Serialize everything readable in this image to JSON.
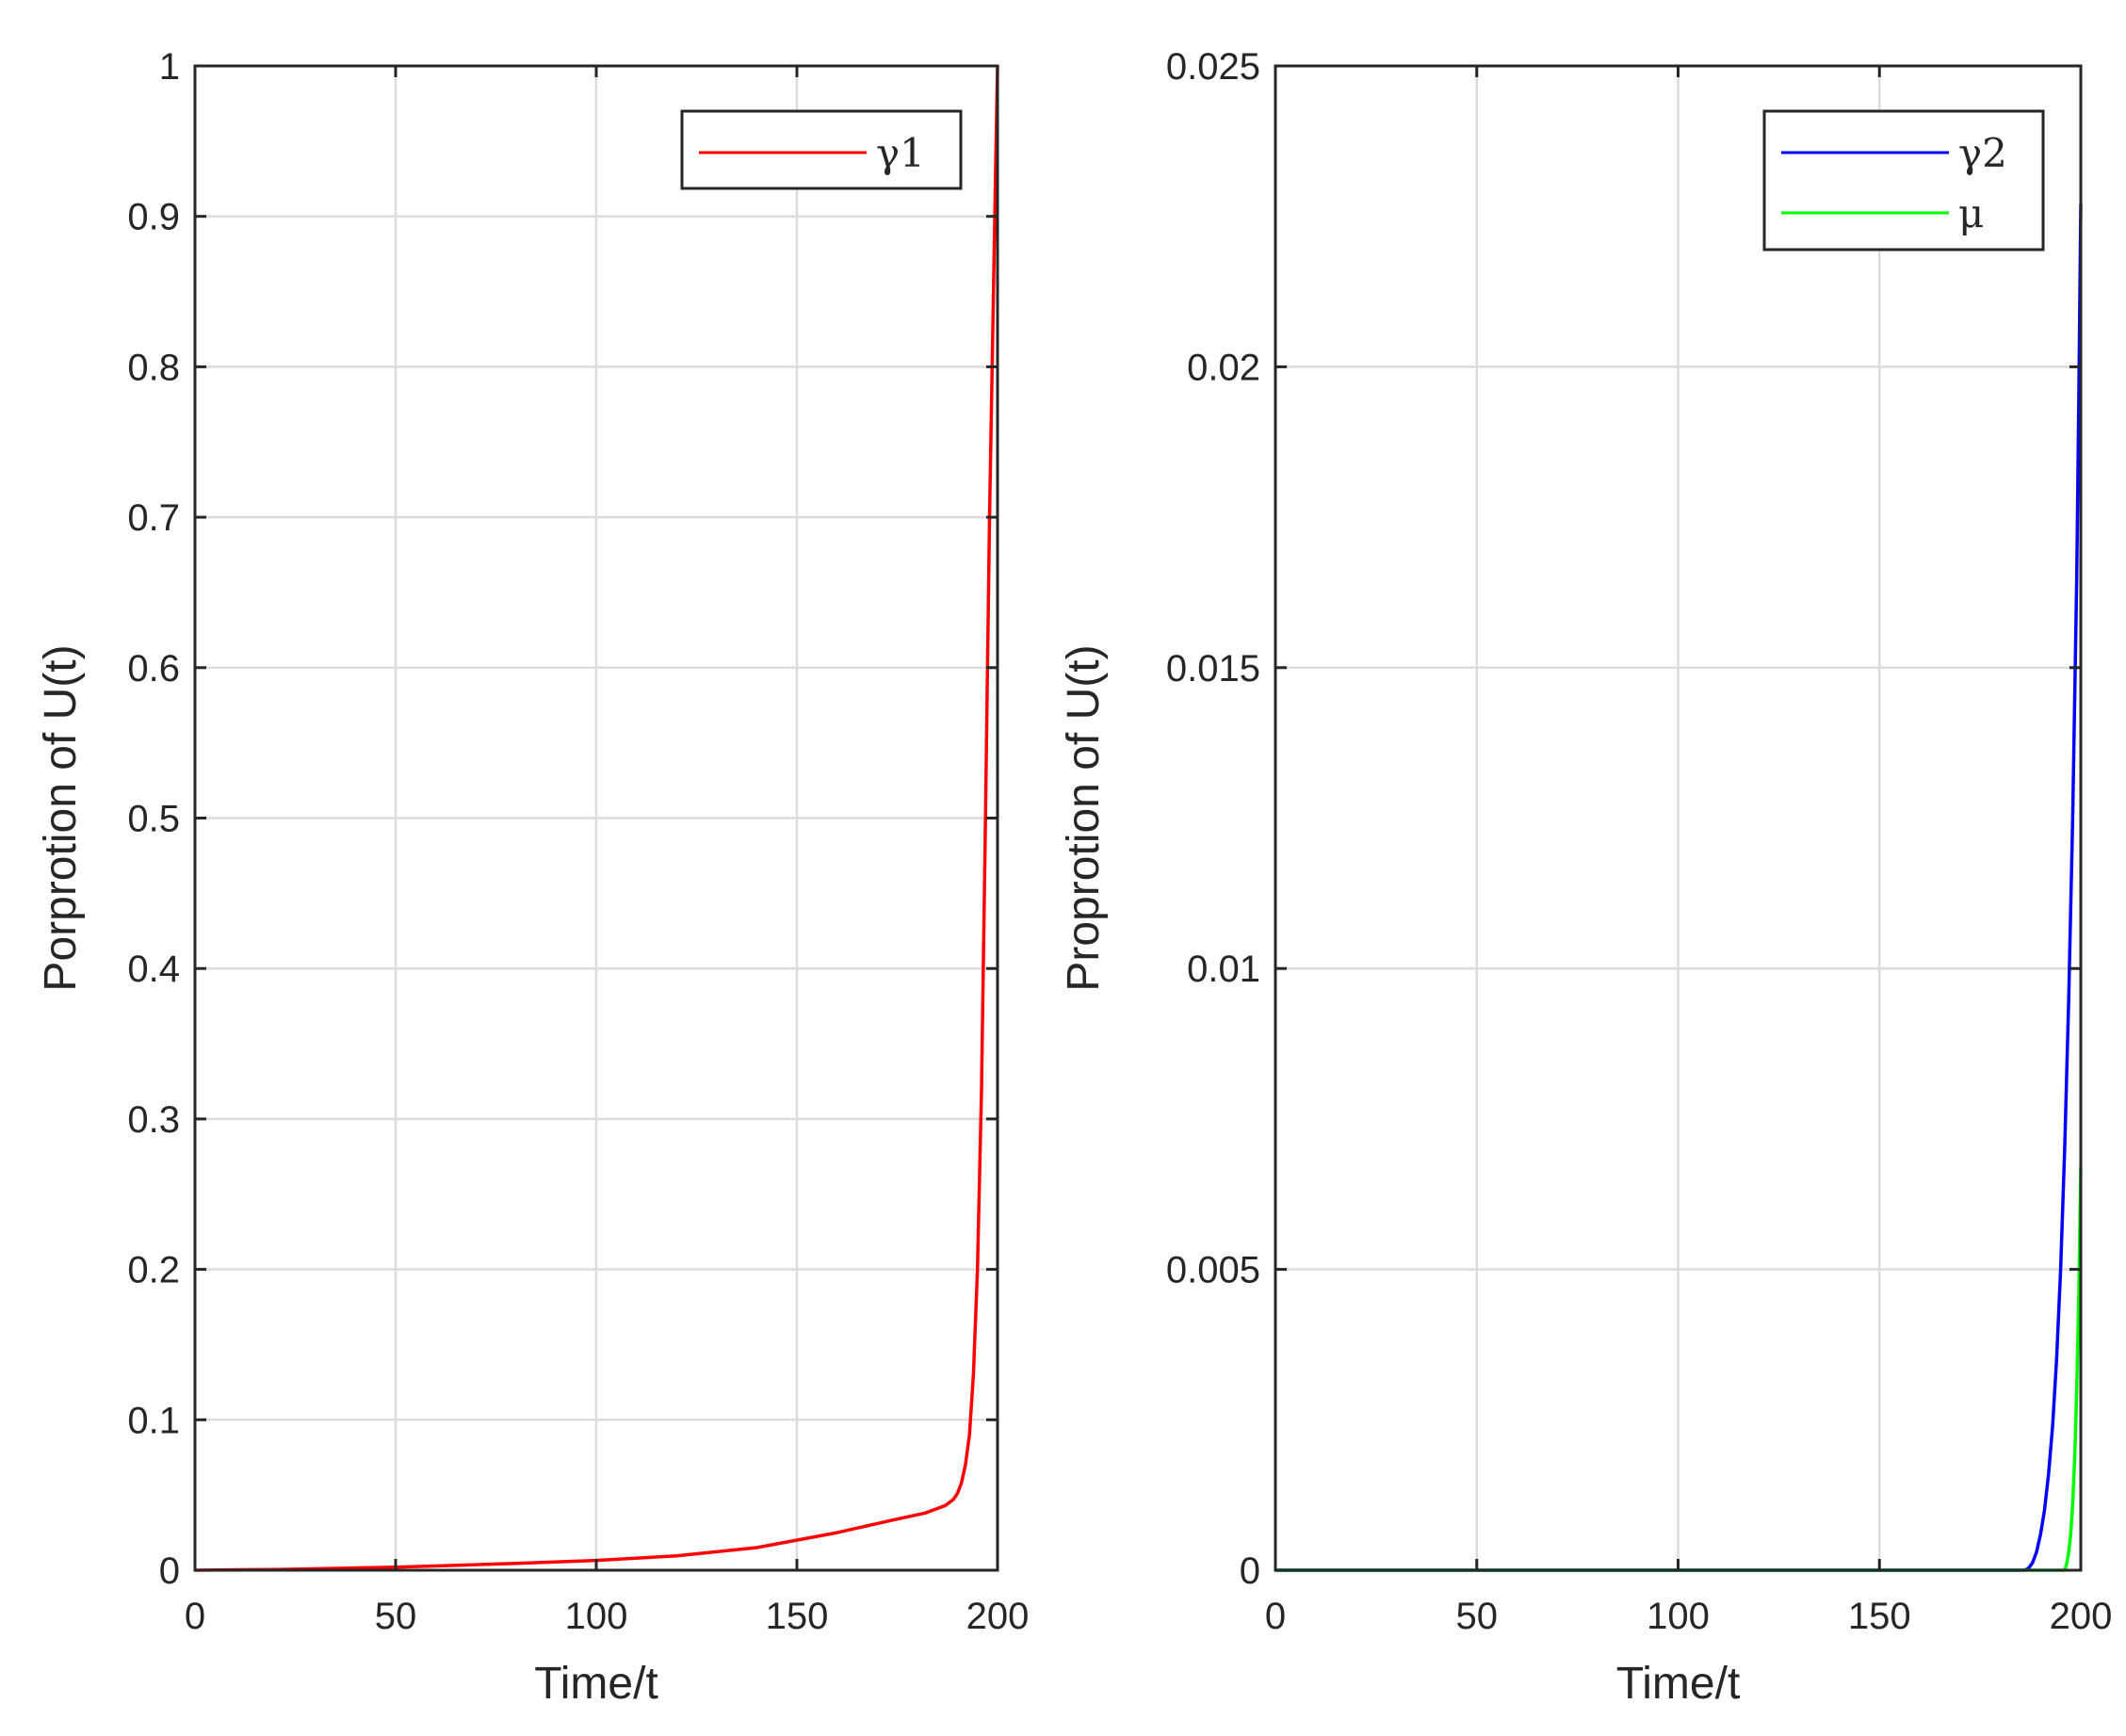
{
  "chart_data": [
    {
      "type": "line",
      "xlabel": "Time/t",
      "ylabel": "Porprotion of U(t)",
      "xlim": [
        0,
        200
      ],
      "ylim": [
        0,
        1
      ],
      "xticks": [
        0,
        50,
        100,
        150,
        200
      ],
      "xtick_labels": [
        "0",
        "50",
        "100",
        "150",
        "200"
      ],
      "yticks": [
        0,
        0.1,
        0.2,
        0.3,
        0.4,
        0.5,
        0.6,
        0.7,
        0.8,
        0.9,
        1
      ],
      "ytick_labels": [
        "0",
        "0.1",
        "0.2",
        "0.3",
        "0.4",
        "0.5",
        "0.6",
        "0.7",
        "0.8",
        "0.9",
        "1"
      ],
      "grid": true,
      "legend_position": "top-right",
      "series": [
        {
          "name": "γ1",
          "color": "#ff0000",
          "x": [
            0,
            20,
            40,
            50,
            60,
            80,
            100,
            120,
            140,
            160,
            175,
            182,
            185,
            187,
            189,
            190,
            191,
            192,
            193,
            194,
            195,
            196,
            197,
            198,
            199,
            199.5,
            200
          ],
          "y": [
            0,
            0.0005,
            0.0015,
            0.002,
            0.0028,
            0.0045,
            0.0065,
            0.0095,
            0.015,
            0.025,
            0.034,
            0.038,
            0.041,
            0.043,
            0.047,
            0.051,
            0.058,
            0.07,
            0.09,
            0.13,
            0.2,
            0.32,
            0.5,
            0.7,
            0.85,
            0.93,
            1.0
          ]
        }
      ]
    },
    {
      "type": "line",
      "xlabel": "Time/t",
      "ylabel": "Proprotion of U(t)",
      "xlim": [
        0,
        200
      ],
      "ylim": [
        0,
        0.025
      ],
      "xticks": [
        0,
        50,
        100,
        150,
        200
      ],
      "xtick_labels": [
        "0",
        "50",
        "100",
        "150",
        "200"
      ],
      "yticks": [
        0,
        0.005,
        0.01,
        0.015,
        0.02,
        0.025
      ],
      "ytick_labels": [
        "0",
        "0.005",
        "0.01",
        "0.015",
        "0.02",
        "0.025"
      ],
      "grid": true,
      "legend_position": "top-right",
      "series": [
        {
          "name": "γ2",
          "color": "#0000ff",
          "x": [
            0,
            100,
            186,
            187,
            188,
            189,
            190,
            191,
            192,
            193,
            194,
            195,
            196,
            197,
            198,
            199,
            199.5,
            200
          ],
          "y": [
            0,
            0,
            0,
            3e-05,
            0.00012,
            0.0003,
            0.0006,
            0.001,
            0.0016,
            0.0024,
            0.0035,
            0.005,
            0.007,
            0.0095,
            0.0125,
            0.0165,
            0.0195,
            0.0227
          ]
        },
        {
          "name": "μ",
          "color": "#00ff00",
          "x": [
            0,
            100,
            196,
            196.5,
            197,
            197.5,
            198,
            198.5,
            199,
            199.5,
            200
          ],
          "y": [
            0,
            0,
            0,
            0.0001,
            0.0003,
            0.0006,
            0.0011,
            0.0019,
            0.003,
            0.0046,
            0.0067
          ]
        }
      ]
    }
  ]
}
